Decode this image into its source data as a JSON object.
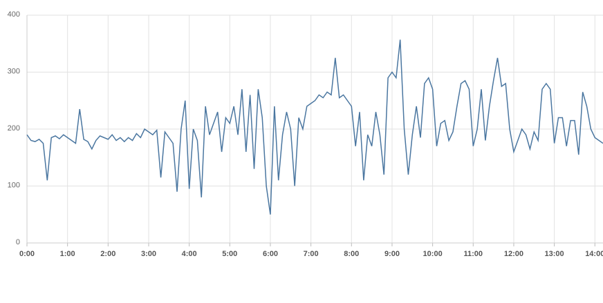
{
  "chart_data": {
    "type": "line",
    "x": [
      0,
      0.1,
      0.2,
      0.3,
      0.4,
      0.5,
      0.6,
      0.7,
      0.8,
      0.9,
      1,
      1.1,
      1.2,
      1.3,
      1.4,
      1.5,
      1.6,
      1.7,
      1.8,
      1.9,
      2,
      2.1,
      2.2,
      2.3,
      2.4,
      2.5,
      2.6,
      2.7,
      2.8,
      2.9,
      3,
      3.1,
      3.2,
      3.3,
      3.4,
      3.5,
      3.6,
      3.7,
      3.8,
      3.9,
      4,
      4.1,
      4.2,
      4.3,
      4.4,
      4.5,
      4.6,
      4.7,
      4.8,
      4.9,
      5,
      5.1,
      5.2,
      5.3,
      5.4,
      5.5,
      5.6,
      5.7,
      5.8,
      5.9,
      6,
      6.1,
      6.2,
      6.3,
      6.4,
      6.5,
      6.6,
      6.7,
      6.8,
      6.9,
      7,
      7.1,
      7.2,
      7.3,
      7.4,
      7.5,
      7.6,
      7.7,
      7.8,
      7.9,
      8,
      8.1,
      8.2,
      8.3,
      8.4,
      8.5,
      8.6,
      8.7,
      8.8,
      8.9,
      9,
      9.1,
      9.2,
      9.3,
      9.4,
      9.5,
      9.6,
      9.7,
      9.8,
      9.9,
      10,
      10.1,
      10.2,
      10.3,
      10.4,
      10.5,
      10.6,
      10.7,
      10.8,
      10.9,
      11,
      11.1,
      11.2,
      11.3,
      11.4,
      11.5,
      11.6,
      11.7,
      11.8,
      11.9,
      12,
      12.1,
      12.2,
      12.3,
      12.4,
      12.5,
      12.6,
      12.7,
      12.8,
      12.9,
      13,
      13.1,
      13.2,
      13.3,
      13.4,
      13.5,
      13.6,
      13.7,
      13.8,
      13.9,
      14,
      14.1,
      14.2
    ],
    "series": [
      {
        "color": "#4a76a0",
        "values": [
          190,
          180,
          178,
          182,
          175,
          110,
          185,
          188,
          183,
          190,
          185,
          180,
          175,
          235,
          182,
          178,
          165,
          180,
          188,
          185,
          182,
          190,
          180,
          185,
          178,
          185,
          180,
          192,
          185,
          200,
          195,
          190,
          198,
          115,
          195,
          185,
          175,
          90,
          200,
          250,
          95,
          200,
          180,
          80,
          240,
          190,
          210,
          230,
          160,
          220,
          210,
          240,
          190,
          270,
          160,
          260,
          130,
          270,
          220,
          100,
          50,
          240,
          110,
          190,
          230,
          200,
          100,
          220,
          200,
          240,
          245,
          250,
          260,
          255,
          265,
          260,
          325,
          255,
          260,
          250,
          240,
          170,
          230,
          110,
          190,
          170,
          230,
          190,
          120,
          290,
          300,
          290,
          357,
          200,
          120,
          190,
          240,
          185,
          280,
          290,
          270,
          170,
          210,
          215,
          180,
          195,
          240,
          280,
          285,
          270,
          170,
          200,
          270,
          180,
          240,
          285,
          325,
          275,
          280,
          200,
          160,
          180,
          200,
          190,
          165,
          195,
          180,
          270,
          280,
          270,
          175,
          220,
          220,
          170,
          215,
          215,
          155,
          265,
          240,
          200,
          185,
          180,
          175
        ]
      }
    ],
    "xlim": [
      0,
      14.2
    ],
    "ylim": [
      0,
      400
    ],
    "xticks": [
      {
        "value": 0,
        "label": "0:00"
      },
      {
        "value": 1,
        "label": "1:00"
      },
      {
        "value": 2,
        "label": "2:00"
      },
      {
        "value": 3,
        "label": "3:00"
      },
      {
        "value": 4,
        "label": "4:00"
      },
      {
        "value": 5,
        "label": "5:00"
      },
      {
        "value": 6,
        "label": "6:00"
      },
      {
        "value": 7,
        "label": "7:00"
      },
      {
        "value": 8,
        "label": "8:00"
      },
      {
        "value": 9,
        "label": "9:00"
      },
      {
        "value": 10,
        "label": "10:00"
      },
      {
        "value": 11,
        "label": "11:00"
      },
      {
        "value": 12,
        "label": "12:00"
      },
      {
        "value": 13,
        "label": "13:00"
      },
      {
        "value": 14,
        "label": "14:00"
      }
    ],
    "yticks": [
      0,
      100,
      200,
      300,
      400
    ],
    "grid": true
  }
}
